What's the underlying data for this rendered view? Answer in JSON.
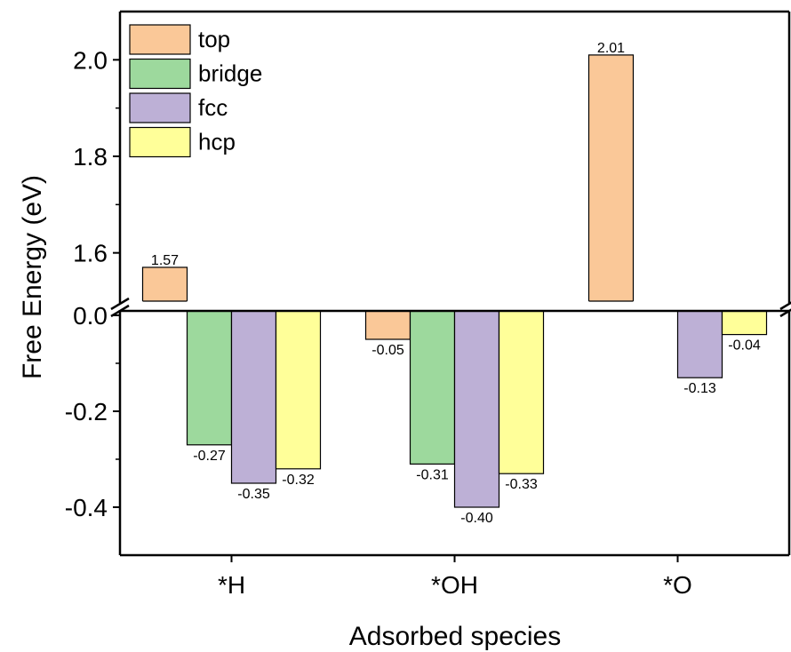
{
  "chart_data": {
    "type": "bar",
    "title": "",
    "xlabel": "Adsorbed species",
    "ylabel": "Free Energy (eV)",
    "categories": [
      "*H",
      "*OH",
      "*O"
    ],
    "series": [
      {
        "name": "top",
        "color": "#FAC898",
        "values": [
          1.57,
          -0.05,
          2.01
        ],
        "labels": [
          "1.57",
          "-0.05",
          "2.01"
        ]
      },
      {
        "name": "bridge",
        "color": "#9DD99D",
        "values": [
          -0.27,
          -0.31,
          null
        ],
        "labels": [
          "-0.27",
          "-0.31",
          ""
        ]
      },
      {
        "name": "fcc",
        "color": "#BDB0D6",
        "values": [
          -0.35,
          -0.4,
          -0.13
        ],
        "labels": [
          "-0.35",
          "-0.40",
          "-0.13"
        ]
      },
      {
        "name": "hcp",
        "color": "#FFFF99",
        "values": [
          -0.32,
          -0.33,
          -0.04
        ],
        "labels": [
          "-0.32",
          "-0.33",
          "-0.04"
        ]
      }
    ],
    "broken_axis": {
      "upper_range": [
        1.5,
        2.1
      ],
      "lower_range": [
        -0.5,
        0.0
      ],
      "upper_ticks": [
        "1.6",
        "1.8",
        "2.0"
      ],
      "upper_tick_values": [
        1.6,
        1.8,
        2.0
      ],
      "lower_ticks": [
        "0.0",
        "-0.2",
        "-0.4"
      ],
      "lower_tick_values": [
        0.0,
        -0.2,
        -0.4
      ]
    },
    "legend_position": "top-left",
    "grid": false
  }
}
